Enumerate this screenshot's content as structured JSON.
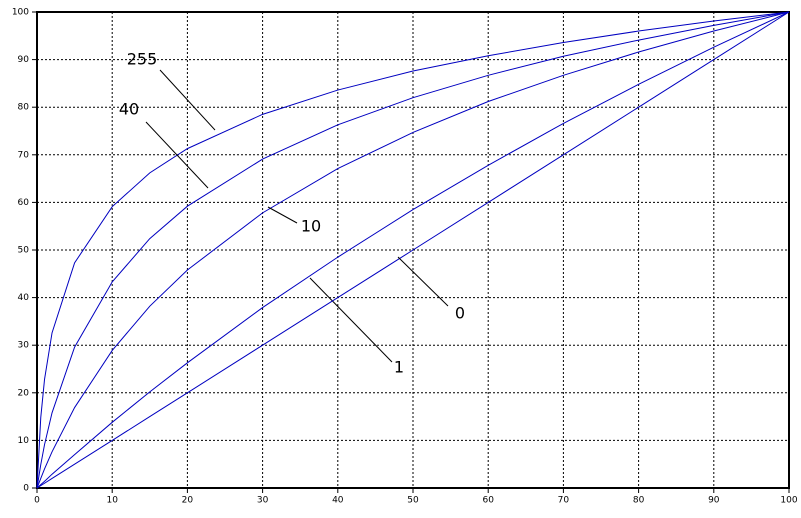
{
  "chart_data": {
    "type": "line",
    "x": [
      0,
      0.5,
      1,
      2,
      5,
      10,
      15,
      20,
      30,
      40,
      50,
      60,
      70,
      80,
      90,
      100
    ],
    "series": [
      {
        "name": "255",
        "color": "#0000c0",
        "values": [
          0,
          14.8,
          22.8,
          32.6,
          47.3,
          59.1,
          66.2,
          71.3,
          78.5,
          83.6,
          87.6,
          90.8,
          93.6,
          96.0,
          98.1,
          100
        ]
      },
      {
        "name": "40",
        "color": "#0000c0",
        "values": [
          0,
          4.9,
          9.1,
          15.8,
          29.6,
          43.3,
          52.4,
          59.2,
          69.1,
          76.3,
          82.0,
          86.7,
          90.7,
          94.1,
          97.2,
          100
        ]
      },
      {
        "name": "10",
        "color": "#0000c0",
        "values": [
          0,
          2.0,
          4.0,
          7.6,
          16.9,
          28.9,
          38.2,
          45.8,
          57.8,
          67.1,
          74.7,
          81.2,
          86.7,
          91.6,
          96.0,
          100
        ]
      },
      {
        "name": "1",
        "color": "#0000c0",
        "values": [
          0,
          0.7,
          1.4,
          2.9,
          7.0,
          13.8,
          20.2,
          26.3,
          37.9,
          48.5,
          58.5,
          67.8,
          76.6,
          84.8,
          92.6,
          100
        ]
      },
      {
        "name": "0",
        "color": "#0000c0",
        "values": [
          0,
          0.5,
          1,
          2,
          5,
          10,
          15,
          20,
          30,
          40,
          50,
          60,
          70,
          80,
          90,
          100
        ]
      }
    ],
    "xlim": [
      0,
      100
    ],
    "ylim": [
      0,
      100
    ],
    "xticks": [
      0,
      10,
      20,
      30,
      40,
      50,
      60,
      70,
      80,
      90,
      100
    ],
    "yticks": [
      0,
      10,
      20,
      30,
      40,
      50,
      60,
      70,
      80,
      90,
      100
    ],
    "grid": true
  }
}
